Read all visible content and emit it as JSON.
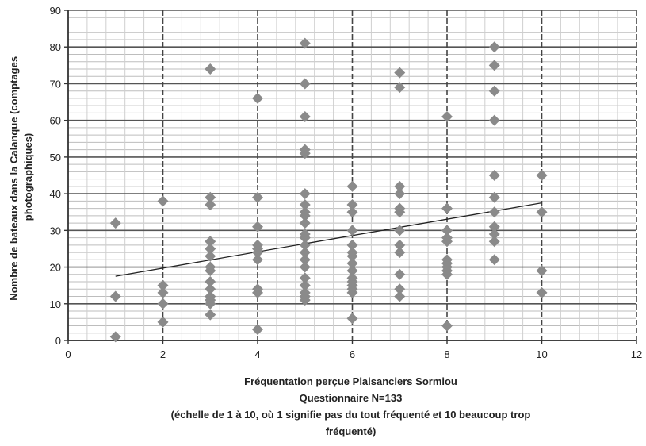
{
  "chart_data": {
    "type": "scatter",
    "title": "",
    "xlabel_lines": [
      "Fréquentation perçue Plaisanciers Sormiou",
      "Questionnaire N=133",
      "(échelle de 1 à 10, où 1 signifie pas du tout fréquenté et 10 beaucoup trop",
      "fréquenté)"
    ],
    "ylabel_lines": [
      "Nombre de bateaux dans la Calanque (comptages",
      "photographiques)"
    ],
    "xlim": [
      0,
      12
    ],
    "ylim": [
      0,
      90
    ],
    "x_ticks": [
      "0",
      "2",
      "4",
      "6",
      "8",
      "10",
      "12"
    ],
    "y_ticks": [
      "0",
      "10",
      "20",
      "30",
      "40",
      "50",
      "60",
      "70",
      "80",
      "90"
    ],
    "marker_color": "#8a8a8a",
    "trendline_color": "#222222",
    "grid": "major and minor",
    "legend": "none",
    "series": [
      {
        "points": [
          [
            1,
            32
          ],
          [
            1,
            12
          ],
          [
            1,
            1
          ],
          [
            2,
            38
          ],
          [
            2,
            15
          ],
          [
            2,
            13
          ],
          [
            2,
            10
          ],
          [
            2,
            5
          ],
          [
            3,
            74
          ],
          [
            3,
            39
          ],
          [
            3,
            37
          ],
          [
            3,
            27
          ],
          [
            3,
            25
          ],
          [
            3,
            23
          ],
          [
            3,
            20
          ],
          [
            3,
            19
          ],
          [
            3,
            16
          ],
          [
            3,
            14
          ],
          [
            3,
            12
          ],
          [
            3,
            11
          ],
          [
            3,
            10
          ],
          [
            3,
            7
          ],
          [
            4,
            66
          ],
          [
            4,
            39
          ],
          [
            4,
            31
          ],
          [
            4,
            26
          ],
          [
            4,
            25
          ],
          [
            4,
            24
          ],
          [
            4,
            22
          ],
          [
            4,
            14
          ],
          [
            4,
            13
          ],
          [
            4,
            3
          ],
          [
            5,
            81
          ],
          [
            5,
            70
          ],
          [
            5,
            61
          ],
          [
            5,
            52
          ],
          [
            5,
            51
          ],
          [
            5,
            40
          ],
          [
            5,
            37
          ],
          [
            5,
            35
          ],
          [
            5,
            34
          ],
          [
            5,
            32
          ],
          [
            5,
            29
          ],
          [
            5,
            28
          ],
          [
            5,
            26
          ],
          [
            5,
            24
          ],
          [
            5,
            22
          ],
          [
            5,
            20
          ],
          [
            5,
            17
          ],
          [
            5,
            15
          ],
          [
            5,
            13
          ],
          [
            5,
            12
          ],
          [
            5,
            11
          ],
          [
            6,
            42
          ],
          [
            6,
            37
          ],
          [
            6,
            35
          ],
          [
            6,
            30
          ],
          [
            6,
            26
          ],
          [
            6,
            24
          ],
          [
            6,
            23
          ],
          [
            6,
            21
          ],
          [
            6,
            19
          ],
          [
            6,
            17
          ],
          [
            6,
            16
          ],
          [
            6,
            15
          ],
          [
            6,
            14
          ],
          [
            6,
            13
          ],
          [
            6,
            6
          ],
          [
            7,
            73
          ],
          [
            7,
            69
          ],
          [
            7,
            42
          ],
          [
            7,
            40
          ],
          [
            7,
            36
          ],
          [
            7,
            35
          ],
          [
            7,
            30
          ],
          [
            7,
            26
          ],
          [
            7,
            24
          ],
          [
            7,
            18
          ],
          [
            7,
            14
          ],
          [
            7,
            12
          ],
          [
            8,
            61
          ],
          [
            8,
            36
          ],
          [
            8,
            30
          ],
          [
            8,
            28
          ],
          [
            8,
            27
          ],
          [
            8,
            22
          ],
          [
            8,
            21
          ],
          [
            8,
            20
          ],
          [
            8,
            19
          ],
          [
            8,
            18
          ],
          [
            8,
            4
          ],
          [
            9,
            80
          ],
          [
            9,
            75
          ],
          [
            9,
            68
          ],
          [
            9,
            60
          ],
          [
            9,
            45
          ],
          [
            9,
            39
          ],
          [
            9,
            35
          ],
          [
            9,
            31
          ],
          [
            9,
            29
          ],
          [
            9,
            27
          ],
          [
            9,
            22
          ],
          [
            10,
            45
          ],
          [
            10,
            35
          ],
          [
            10,
            19
          ],
          [
            10,
            13
          ]
        ]
      }
    ],
    "trendline": {
      "x": [
        1,
        10
      ],
      "y": [
        17.5,
        37.5
      ]
    }
  }
}
